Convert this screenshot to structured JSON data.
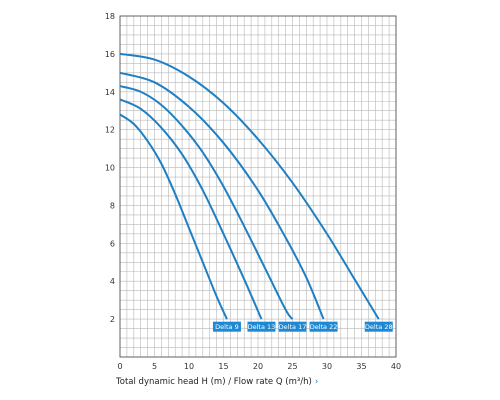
{
  "chart_data": {
    "type": "line",
    "title": "",
    "xlabel": "Total dynamic head H (m) / Flow rate Q (m³/h)",
    "ylabel": "",
    "xlim": [
      0,
      40
    ],
    "ylim": [
      0,
      18
    ],
    "x_ticks": [
      0,
      5,
      10,
      15,
      20,
      25,
      30,
      35,
      40
    ],
    "y_ticks": [
      2,
      4,
      6,
      8,
      10,
      12,
      14,
      16,
      18
    ],
    "grid": true,
    "line_color": "#1f7fc4",
    "label_color": "#1e88d2",
    "series": [
      {
        "name": "Delta 9",
        "points": [
          [
            0,
            12.8
          ],
          [
            2,
            12.3
          ],
          [
            4,
            11.4
          ],
          [
            6,
            10.2
          ],
          [
            8,
            8.6
          ],
          [
            10,
            6.8
          ],
          [
            12,
            5.0
          ],
          [
            14,
            3.2
          ],
          [
            15.5,
            2.0
          ]
        ]
      },
      {
        "name": "Delta 13",
        "points": [
          [
            0,
            13.6
          ],
          [
            3,
            13.1
          ],
          [
            6,
            12.1
          ],
          [
            9,
            10.7
          ],
          [
            12,
            8.8
          ],
          [
            15,
            6.5
          ],
          [
            18,
            4.1
          ],
          [
            20.5,
            2.0
          ]
        ]
      },
      {
        "name": "Delta 17",
        "points": [
          [
            0,
            14.3
          ],
          [
            3,
            14.0
          ],
          [
            6,
            13.3
          ],
          [
            9,
            12.2
          ],
          [
            12,
            10.8
          ],
          [
            15,
            9.0
          ],
          [
            18,
            6.9
          ],
          [
            21,
            4.7
          ],
          [
            24,
            2.5
          ],
          [
            25,
            2.0
          ]
        ]
      },
      {
        "name": "Delta 22",
        "points": [
          [
            0,
            15.0
          ],
          [
            5,
            14.5
          ],
          [
            10,
            13.2
          ],
          [
            15,
            11.3
          ],
          [
            20,
            8.8
          ],
          [
            24,
            6.3
          ],
          [
            27,
            4.2
          ],
          [
            29.5,
            2.0
          ]
        ]
      },
      {
        "name": "Delta 28",
        "points": [
          [
            0,
            16.0
          ],
          [
            5,
            15.7
          ],
          [
            10,
            14.8
          ],
          [
            15,
            13.4
          ],
          [
            20,
            11.5
          ],
          [
            25,
            9.2
          ],
          [
            30,
            6.5
          ],
          [
            34,
            4.1
          ],
          [
            37.5,
            2.0
          ]
        ]
      }
    ],
    "series_label_y": 1.6,
    "series_label_x": [
      15.5,
      20.5,
      25,
      29.5,
      37.5
    ]
  }
}
